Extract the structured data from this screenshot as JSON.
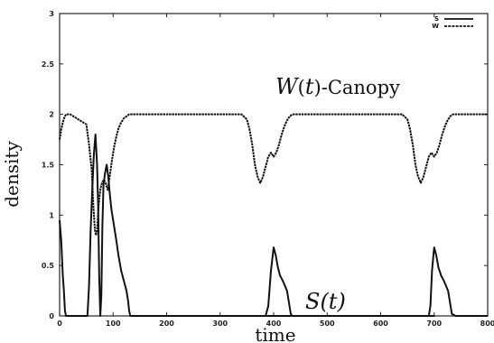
{
  "chart_data": {
    "type": "line",
    "title": "",
    "xlabel": "time",
    "ylabel": "density",
    "xlim": [
      0,
      800
    ],
    "ylim": [
      0,
      3
    ],
    "x_ticks": [
      "0",
      "100",
      "200",
      "300",
      "400",
      "500",
      "600",
      "700",
      "800"
    ],
    "y_ticks": [
      "0",
      "0.5",
      "1",
      "1.5",
      "2",
      "2.5",
      "3"
    ],
    "grid": false,
    "legend_placement": "top-right",
    "legend": [
      "S",
      "W"
    ],
    "annotations": {
      "w_label_pre": "W",
      "w_label_open": "(",
      "w_label_var": "t",
      "w_label_post": ")-Canopy",
      "s_label": "S(t)"
    },
    "series": [
      {
        "name": "S",
        "style": "solid",
        "x": [
          0,
          3,
          6,
          8,
          10,
          12,
          52,
          55,
          58,
          61,
          64,
          67,
          70,
          72,
          74,
          76,
          78,
          80,
          82,
          85,
          88,
          91,
          94,
          97,
          100,
          103,
          106,
          110,
          115,
          120,
          125,
          128,
          130,
          132,
          135,
          700,
          380,
          385,
          390,
          395,
          400,
          404,
          408,
          412,
          417,
          421,
          425,
          429,
          432,
          435,
          440,
          680,
          690,
          693,
          696,
          700,
          704,
          708,
          713,
          718,
          722,
          726,
          730,
          733,
          740,
          800
        ],
        "y": [
          0.95,
          0.75,
          0.4,
          0.25,
          0.05,
          0,
          0,
          0.3,
          0.85,
          1.25,
          1.6,
          1.8,
          1.5,
          1.1,
          0.4,
          0,
          0.2,
          0.9,
          1.3,
          1.42,
          1.5,
          1.38,
          1.2,
          1.05,
          0.95,
          0.85,
          0.75,
          0.6,
          0.45,
          0.35,
          0.25,
          0.15,
          0.05,
          0,
          0,
          0,
          0,
          0,
          0.1,
          0.45,
          0.68,
          0.6,
          0.48,
          0.4,
          0.35,
          0.3,
          0.25,
          0.12,
          0.02,
          0,
          0,
          0,
          0,
          0.1,
          0.45,
          0.68,
          0.6,
          0.48,
          0.4,
          0.35,
          0.3,
          0.25,
          0.12,
          0.02,
          0,
          0
        ]
      },
      {
        "name": "W",
        "style": "dashed",
        "x": [
          0,
          3,
          6,
          9,
          12,
          20,
          50,
          55,
          60,
          63,
          66,
          68,
          70,
          73,
          76,
          78,
          80,
          83,
          86,
          90,
          94,
          98,
          102,
          106,
          110,
          115,
          120,
          125,
          130,
          135,
          340,
          350,
          355,
          360,
          365,
          370,
          375,
          380,
          385,
          390,
          395,
          400,
          405,
          410,
          415,
          420,
          425,
          430,
          435,
          640,
          650,
          655,
          660,
          665,
          670,
          675,
          680,
          685,
          690,
          695,
          700,
          705,
          710,
          715,
          720,
          725,
          730,
          735,
          800
        ],
        "y": [
          1.75,
          1.85,
          1.92,
          1.97,
          2.0,
          2.0,
          1.9,
          1.7,
          1.45,
          1.1,
          0.85,
          0.8,
          0.85,
          1.1,
          1.25,
          1.3,
          1.33,
          1.35,
          1.32,
          1.25,
          1.4,
          1.55,
          1.68,
          1.78,
          1.86,
          1.92,
          1.96,
          1.98,
          2.0,
          2.0,
          2.0,
          1.95,
          1.85,
          1.7,
          1.5,
          1.38,
          1.32,
          1.38,
          1.48,
          1.58,
          1.62,
          1.58,
          1.62,
          1.7,
          1.8,
          1.88,
          1.94,
          1.98,
          2.0,
          2.0,
          1.95,
          1.85,
          1.7,
          1.5,
          1.38,
          1.32,
          1.38,
          1.48,
          1.58,
          1.62,
          1.58,
          1.62,
          1.7,
          1.8,
          1.88,
          1.94,
          1.98,
          2.0,
          2.0
        ]
      }
    ]
  }
}
